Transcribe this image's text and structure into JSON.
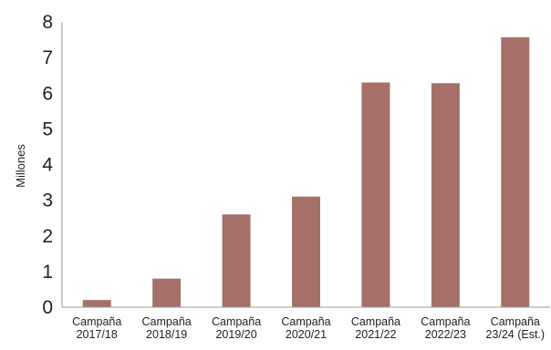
{
  "chart_data": {
    "type": "bar",
    "title": "",
    "xlabel": "",
    "ylabel": "Millones",
    "ylim": [
      0,
      8
    ],
    "yticks": [
      "0",
      "1",
      "2",
      "3",
      "4",
      "5",
      "6",
      "7",
      "8"
    ],
    "grid": false,
    "legend": "none",
    "bar_color": "#a47068",
    "axis_color": "#999999",
    "categories": [
      [
        "Campaña",
        "2017/18"
      ],
      [
        "Campaña",
        "2018/19"
      ],
      [
        "Campaña",
        "2019/20"
      ],
      [
        "Campaña",
        "2020/21"
      ],
      [
        "Campaña",
        "2021/22"
      ],
      [
        "Campaña",
        "2022/23"
      ],
      [
        "Campaña",
        "23/24 (Est.)"
      ]
    ],
    "values": [
      0.2,
      0.8,
      2.6,
      3.1,
      6.3,
      6.28,
      7.57
    ]
  }
}
